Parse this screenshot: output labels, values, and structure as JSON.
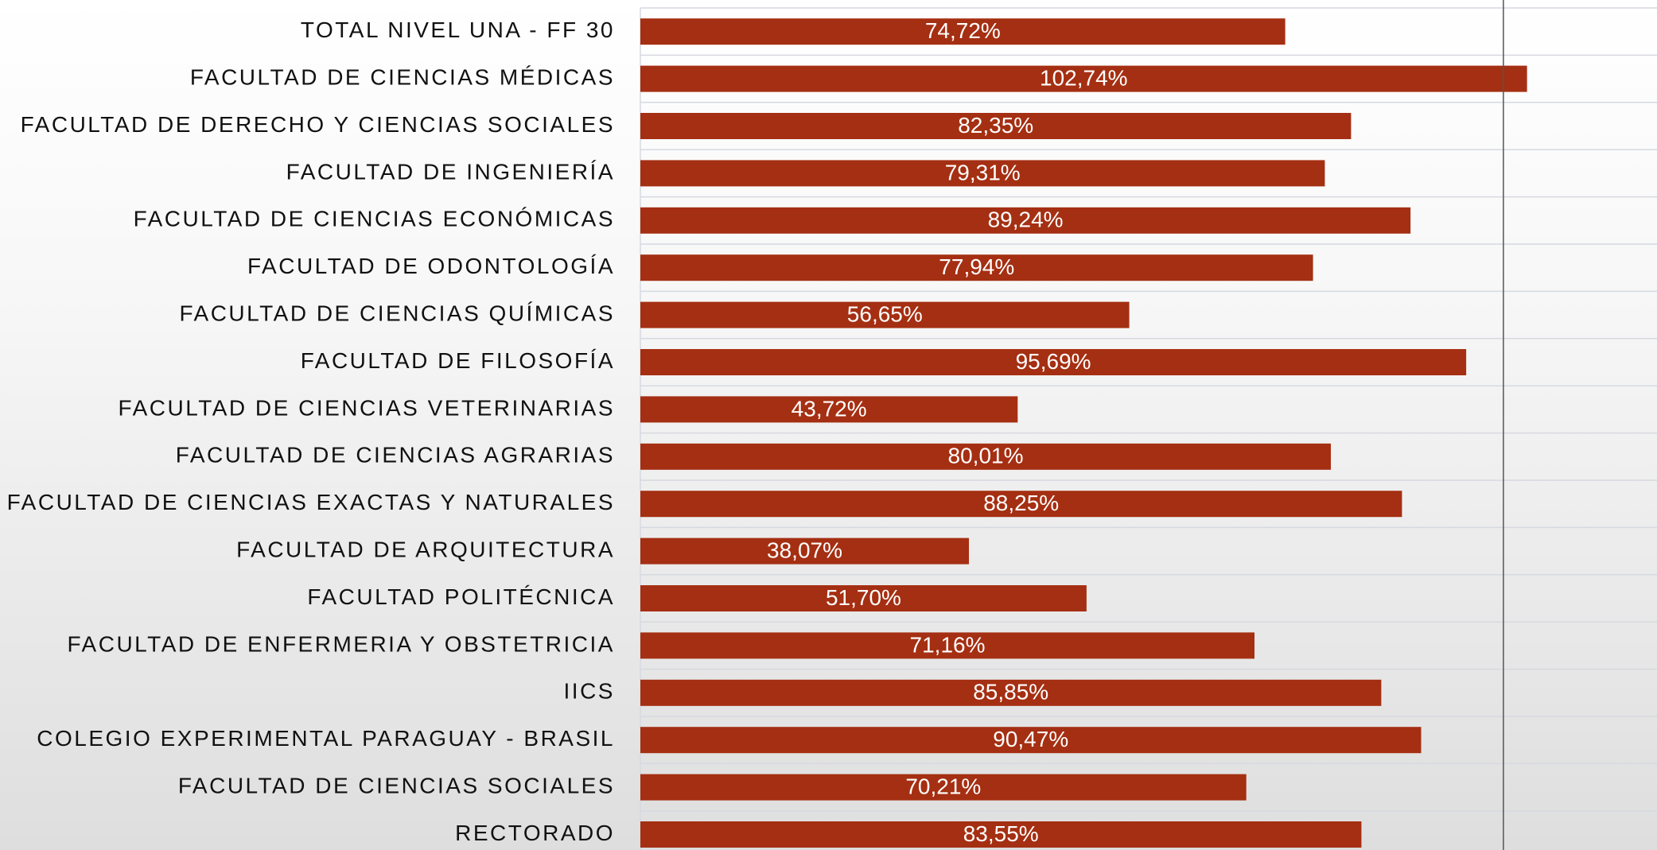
{
  "chart_data": {
    "type": "barh",
    "categories": [
      "TOTAL NIVEL UNA - FF 30",
      "FACULTAD DE CIENCIAS MÉDICAS",
      "FACULTAD DE DERECHO Y CIENCIAS SOCIALES",
      "FACULTAD DE INGENIERÍA",
      "FACULTAD DE CIENCIAS ECONÓMICAS",
      "FACULTAD DE ODONTOLOGÍA",
      "FACULTAD DE CIENCIAS QUÍMICAS",
      "FACULTAD DE FILOSOFÍA",
      "FACULTAD DE CIENCIAS VETERINARIAS",
      "FACULTAD DE CIENCIAS AGRARIAS",
      "FACULTAD DE CIENCIAS EXACTAS Y NATURALES",
      "FACULTAD DE ARQUITECTURA",
      "FACULTAD POLITÉCNICA",
      "FACULTAD DE ENFERMERIA Y OBSTETRICIA",
      "IICS",
      "COLEGIO EXPERIMENTAL PARAGUAY - BRASIL",
      "FACULTAD DE CIENCIAS SOCIALES",
      "RECTORADO"
    ],
    "values": [
      74.72,
      102.74,
      82.35,
      79.31,
      89.24,
      77.94,
      56.65,
      95.69,
      43.72,
      80.01,
      88.25,
      38.07,
      51.7,
      71.16,
      85.85,
      90.47,
      70.21,
      83.55
    ],
    "value_labels": [
      "74,72%",
      "102,74%",
      "82,35%",
      "79,31%",
      "89,24%",
      "77,94%",
      "56,65%",
      "95,69%",
      "43,72%",
      "80,01%",
      "88,25%",
      "38,07%",
      "51,70%",
      "71,16%",
      "85,85%",
      "90,47%",
      "70,21%",
      "83,55%"
    ],
    "color": "#a52f12",
    "xlim": [
      0,
      117.8
    ],
    "reference_line": 100
  }
}
